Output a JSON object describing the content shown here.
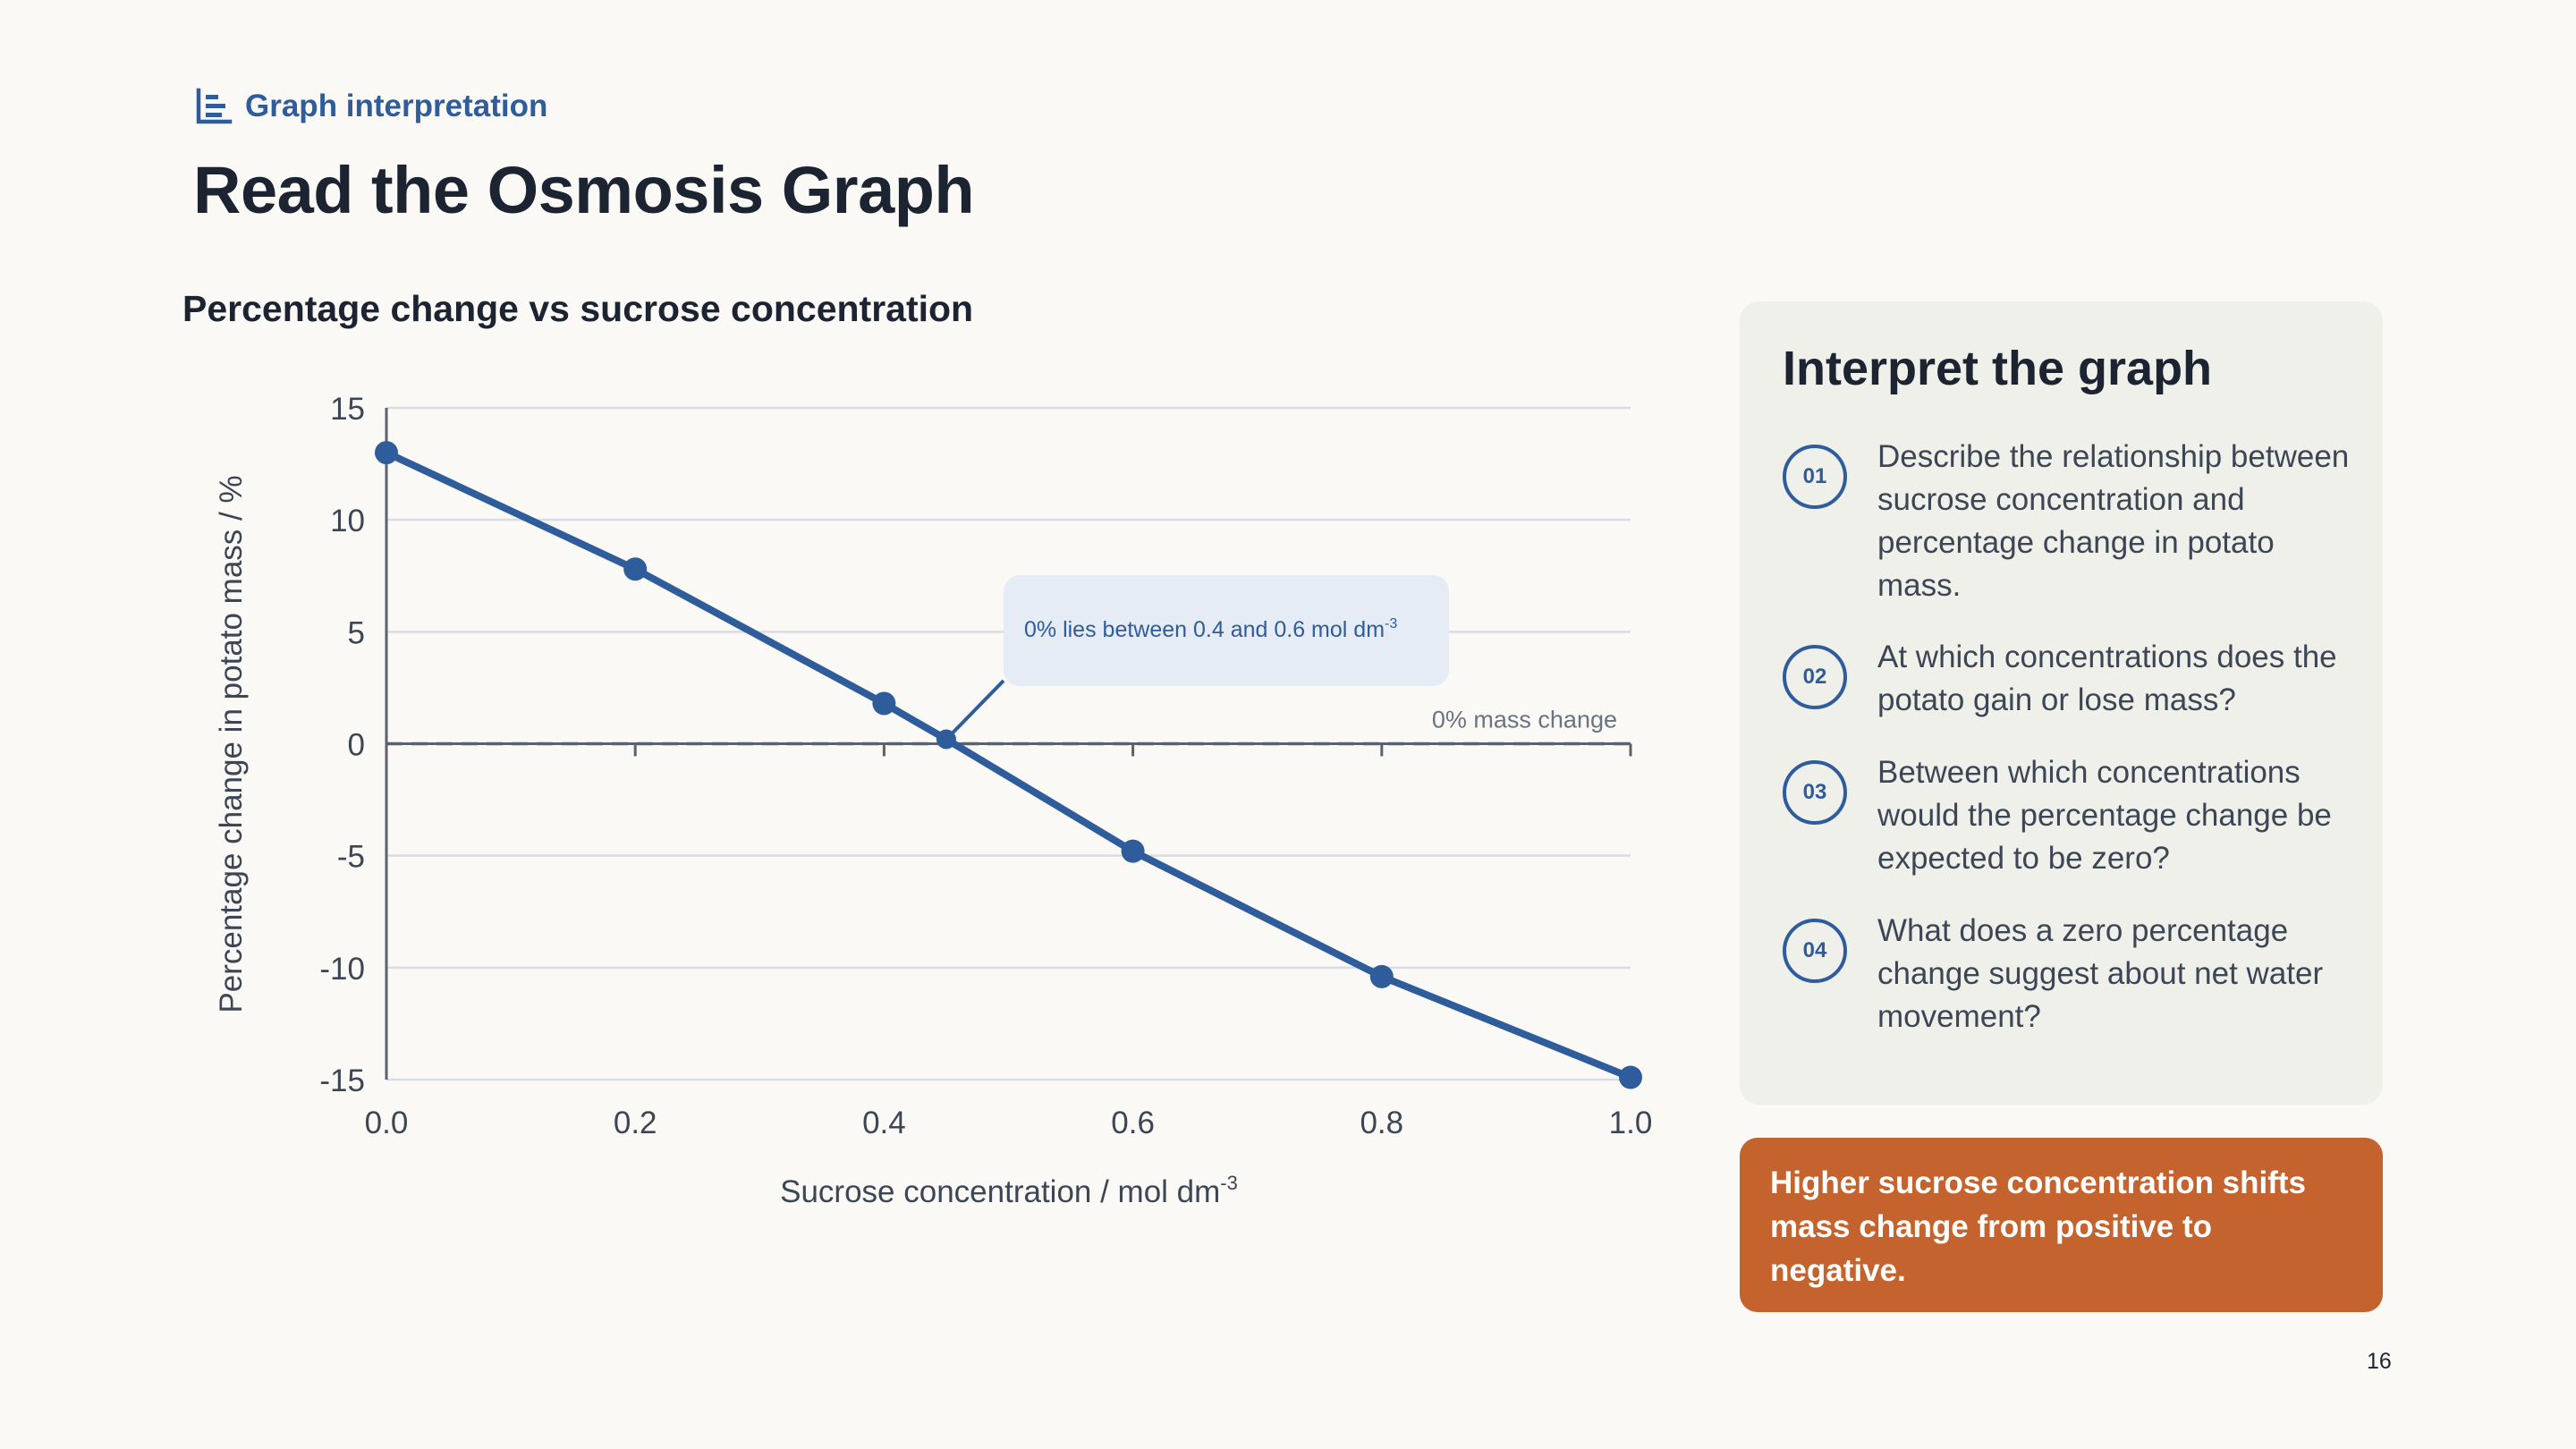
{
  "header": {
    "eyebrow": "Graph interpretation",
    "eyebrow_icon": "bar-chart-icon",
    "title": "Read the Osmosis Graph"
  },
  "chart_data": {
    "type": "line",
    "title": "Percentage change vs sucrose concentration",
    "xlabel": "Sucrose concentration / mol dm",
    "xlabel_sup": "-3",
    "ylabel": "Percentage change in potato mass / %",
    "x": [
      0.0,
      0.2,
      0.4,
      0.6,
      0.8,
      1.0
    ],
    "x_ticks": [
      "0.0",
      "0.2",
      "0.4",
      "0.6",
      "0.8",
      "1.0"
    ],
    "y_ticks": [
      "15",
      "10",
      "5",
      "0",
      "-5",
      "-10",
      "-15"
    ],
    "y_tick_values": [
      15,
      10,
      5,
      0,
      -5,
      -10,
      -15
    ],
    "xlim": [
      0,
      1
    ],
    "ylim": [
      -15,
      15
    ],
    "grid": true,
    "series": [
      {
        "x": [
          0.0,
          0.2,
          0.4,
          0.45,
          0.6,
          0.8,
          1.0
        ],
        "values": [
          13.0,
          7.8,
          1.8,
          0.2,
          -4.8,
          -10.4,
          -14.9
        ],
        "color": "#2f5c9b"
      }
    ],
    "reference_line": {
      "y": 0,
      "label": "0% mass change"
    },
    "annotation": {
      "text": "0% lies between 0.4 and 0.6 mol dm",
      "sup": "-3",
      "target_x": 0.45,
      "target_y": 0.2
    }
  },
  "panel": {
    "title": "Interpret the graph",
    "questions": [
      {
        "num": "01",
        "text": "Describe the relationship between sucrose concentration and percentage change in potato mass."
      },
      {
        "num": "02",
        "text": "At which concentrations does the potato gain or lose mass?"
      },
      {
        "num": "03",
        "text": "Between which concentrations would the percentage change be expected to be zero?"
      },
      {
        "num": "04",
        "text": "What does a zero percentage change suggest about net water movement?"
      }
    ]
  },
  "callout": {
    "text": "Higher sucrose concentration shifts mass change from positive to negative."
  },
  "page_number": "16",
  "colors": {
    "accent": "#2f5c9b",
    "callout": "#c4632e",
    "panel": "#f0f0eb",
    "annotation_bg": "#e6ecf6"
  }
}
